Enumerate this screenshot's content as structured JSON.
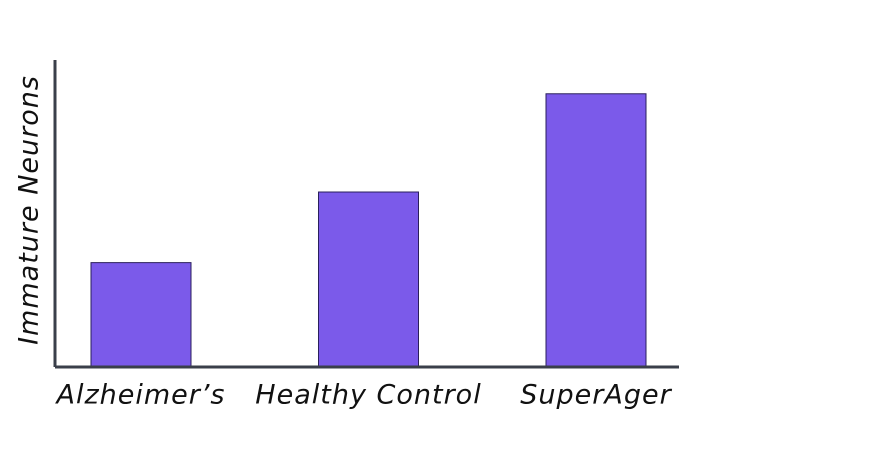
{
  "chart_data": {
    "type": "bar",
    "y_label": "Immature Neurons",
    "categories": [
      "Alzheimer’s",
      "Healthy Control",
      "SuperAger"
    ],
    "values": [
      34,
      57,
      89
    ],
    "color": "#7b5aea",
    "ylim": [
      0,
      100
    ]
  }
}
